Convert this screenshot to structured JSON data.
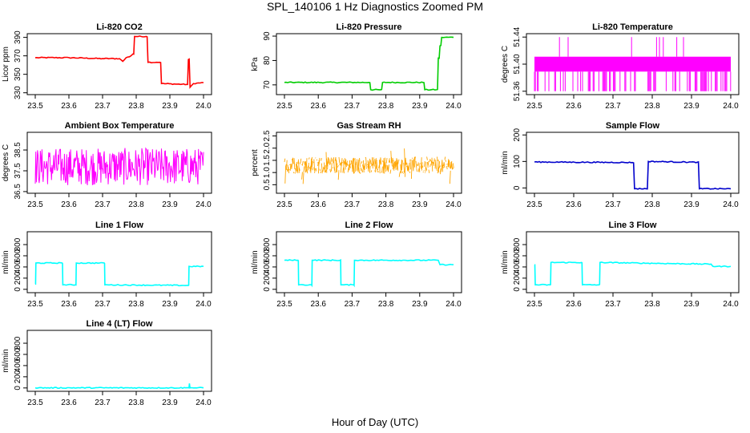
{
  "figure": {
    "title": "SPL_140106  1 Hz Diagnostics Zoomed PM",
    "xlabel": "Hour of Day (UTC)"
  },
  "chart_data": [
    {
      "type": "line",
      "title": "Li-820 CO2",
      "ylabel": "Licor ppm",
      "color": "#ff0000",
      "xlim": [
        23.5,
        24.0
      ],
      "ylim": [
        328,
        394
      ],
      "xticks": [
        "23.5",
        "23.6",
        "23.7",
        "23.8",
        "23.9",
        "24.0"
      ],
      "yticks": [
        "330",
        "350",
        "370",
        "390"
      ],
      "x": [
        23.5,
        23.6,
        23.7,
        23.75,
        23.76,
        23.77,
        23.78,
        23.79,
        23.795,
        23.83,
        23.835,
        23.86,
        23.87,
        23.875,
        23.95,
        23.955,
        23.96,
        23.97,
        24.0
      ],
      "y": [
        368,
        368,
        367,
        367,
        364,
        368,
        369,
        372,
        391,
        391,
        363,
        363,
        363,
        340,
        339,
        366,
        336,
        340,
        341
      ]
    },
    {
      "type": "line",
      "title": "Li-820 Pressure",
      "ylabel": "kPa",
      "color": "#00cc00",
      "xlim": [
        23.5,
        24.0
      ],
      "ylim": [
        66,
        91
      ],
      "xticks": [
        "23.5",
        "23.6",
        "23.7",
        "23.8",
        "23.9",
        "24.0"
      ],
      "yticks": [
        "70",
        "80",
        "90"
      ],
      "x": [
        23.5,
        23.75,
        23.755,
        23.785,
        23.79,
        23.91,
        23.915,
        23.95,
        23.955,
        23.96,
        23.965,
        24.0
      ],
      "y": [
        71,
        71,
        68,
        68,
        71,
        71,
        68,
        68,
        81,
        86,
        89.5,
        89.5
      ]
    },
    {
      "type": "line",
      "title": "Li-820 Temperature",
      "ylabel": "degrees C",
      "color": "#ff00ff",
      "xlim": [
        23.5,
        24.0
      ],
      "ylim": [
        51.355,
        51.445
      ],
      "xticks": [
        "23.5",
        "23.6",
        "23.7",
        "23.8",
        "23.9",
        "24.0"
      ],
      "yticks": [
        "51.36",
        "51.40",
        "51.44"
      ],
      "y_levels": [
        51.411,
        51.389
      ],
      "y_spike_low": 51.36,
      "y_spike_high": 51.44
    },
    {
      "type": "line",
      "title": "Ambient Box Temperature",
      "ylabel": "degrees C",
      "color": "#ff00ff",
      "xlim": [
        23.5,
        24.0
      ],
      "ylim": [
        36.42,
        39.35
      ],
      "xticks": [
        "23.5",
        "23.6",
        "23.7",
        "23.8",
        "23.9",
        "24.0"
      ],
      "yticks": [
        "36.5",
        "37.5",
        "38.5"
      ],
      "y_center": 37.7,
      "y_spread": 0.9
    },
    {
      "type": "scatter",
      "title": "Gas Stream RH",
      "ylabel": "percent",
      "color": "#ffa500",
      "xlim": [
        23.5,
        24.0
      ],
      "ylim": [
        0.15,
        2.65
      ],
      "xticks": [
        "23.5",
        "23.6",
        "23.7",
        "23.8",
        "23.9",
        "24.0"
      ],
      "yticks": [
        "0.5",
        "1.0",
        "1.5",
        "2.0",
        "2.5"
      ],
      "y_center": 1.3,
      "y_spread": 0.35
    },
    {
      "type": "line",
      "title": "Sample Flow",
      "ylabel": "ml/min",
      "color": "#0000cc",
      "xlim": [
        23.5,
        24.0
      ],
      "ylim": [
        -20,
        210
      ],
      "xticks": [
        "23.5",
        "23.6",
        "23.7",
        "23.8",
        "23.9",
        "24.0"
      ],
      "yticks": [
        "0",
        "100",
        "200"
      ],
      "x": [
        23.5,
        23.75,
        23.755,
        23.785,
        23.79,
        23.915,
        23.92,
        24.0
      ],
      "y": [
        98,
        96,
        -3,
        -3,
        100,
        97,
        -3,
        -3
      ]
    },
    {
      "type": "line",
      "title": "Line 1 Flow",
      "ylabel": "ml/min",
      "color": "#00ffff",
      "xlim": [
        23.5,
        24.0
      ],
      "ylim": [
        -60,
        1030
      ],
      "xticks": [
        "23.5",
        "23.6",
        "23.7",
        "23.8",
        "23.9",
        "24.0"
      ],
      "yticks": [
        "0",
        "200",
        "400",
        "600",
        "800"
      ],
      "x": [
        23.5,
        23.502,
        23.58,
        23.582,
        23.62,
        23.622,
        23.705,
        23.707,
        23.955,
        23.957,
        24.0
      ],
      "y": [
        90,
        470,
        470,
        80,
        80,
        470,
        470,
        80,
        70,
        410,
        410
      ]
    },
    {
      "type": "line",
      "title": "Line 2 Flow",
      "ylabel": "ml/min",
      "color": "#00ffff",
      "xlim": [
        23.5,
        24.0
      ],
      "ylim": [
        -60,
        1030
      ],
      "xticks": [
        "23.5",
        "23.6",
        "23.7",
        "23.8",
        "23.9",
        "24.0"
      ],
      "yticks": [
        "0",
        "200",
        "400",
        "600",
        "800"
      ],
      "x": [
        23.5,
        23.54,
        23.542,
        23.58,
        23.582,
        23.665,
        23.667,
        23.705,
        23.707,
        23.955,
        23.96,
        24.0
      ],
      "y": [
        520,
        520,
        80,
        80,
        520,
        520,
        80,
        80,
        520,
        520,
        440,
        440
      ]
    },
    {
      "type": "line",
      "title": "Line 3 Flow",
      "ylabel": "ml/min",
      "color": "#00ffff",
      "xlim": [
        23.5,
        24.0
      ],
      "ylim": [
        -60,
        1030
      ],
      "xticks": [
        "23.5",
        "23.6",
        "23.7",
        "23.8",
        "23.9",
        "24.0"
      ],
      "yticks": [
        "0",
        "200",
        "400",
        "600",
        "800"
      ],
      "x": [
        23.5,
        23.502,
        23.54,
        23.542,
        23.62,
        23.622,
        23.665,
        23.667,
        23.95,
        23.955,
        24.0
      ],
      "y": [
        440,
        80,
        80,
        480,
        480,
        80,
        80,
        480,
        450,
        410,
        410
      ]
    },
    {
      "type": "line",
      "title": "Line 4 (LT) Flow",
      "ylabel": "ml/min",
      "color": "#00ffff",
      "xlim": [
        23.5,
        24.0
      ],
      "ylim": [
        -60,
        1030
      ],
      "xticks": [
        "23.5",
        "23.6",
        "23.7",
        "23.8",
        "23.9",
        "24.0"
      ],
      "yticks": [
        "0",
        "200",
        "400",
        "600",
        "800"
      ],
      "x": [
        23.5,
        23.957,
        23.958,
        23.96,
        24.0
      ],
      "y": [
        2,
        2,
        80,
        2,
        2
      ]
    }
  ]
}
